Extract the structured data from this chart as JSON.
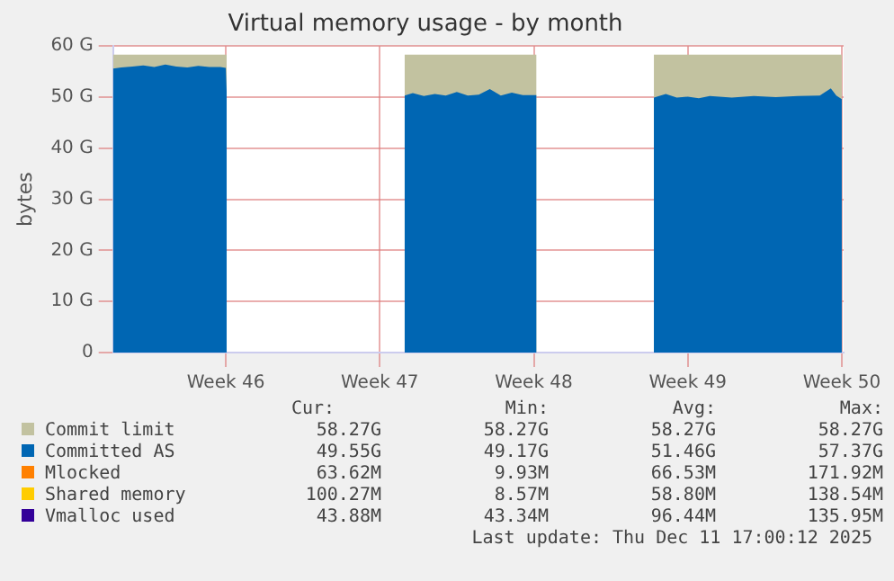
{
  "chart_data": {
    "type": "area",
    "title": "Virtual memory usage - by month",
    "ylabel": "bytes",
    "x": [
      "2025-11-04T21:00",
      "2025-11-05T06:00",
      "2025-11-05T18:00",
      "2025-11-06T06:00",
      "2025-11-06T18:00",
      "2025-11-07T06:00",
      "2025-11-07T18:00",
      "2025-11-08T06:00",
      "2025-11-08T18:00",
      "2025-11-09T06:00",
      "2025-11-09T18:00",
      "2025-11-10T00:00",
      "2025-11-10T01:00",
      "2025-11-14T00:00",
      "2025-11-18T03:00",
      "2025-11-18T12:00",
      "2025-11-19T00:00",
      "2025-11-19T12:00",
      "2025-11-20T00:00",
      "2025-11-20T12:00",
      "2025-11-21T00:00",
      "2025-11-21T12:00",
      "2025-11-22T00:00",
      "2025-11-22T12:00",
      "2025-11-23T00:00",
      "2025-11-23T12:00",
      "2025-11-24T03:00",
      "2025-11-27T00:00",
      "2025-11-29T11:00",
      "2025-11-30T00:00",
      "2025-11-30T12:00",
      "2025-12-01T00:00",
      "2025-12-01T12:00",
      "2025-12-02T00:00",
      "2025-12-03T00:00",
      "2025-12-04T00:00",
      "2025-12-05T00:00",
      "2025-12-06T00:00",
      "2025-12-07T00:00",
      "2025-12-07T12:00",
      "2025-12-07T18:00",
      "2025-12-08T00:00"
    ],
    "series": [
      {
        "name": "Commit limit",
        "color": "#c2c2a0",
        "values": [
          58.3,
          58.3,
          58.3,
          58.3,
          58.3,
          58.3,
          58.3,
          58.3,
          58.3,
          58.3,
          58.3,
          58.3,
          58.3,
          null,
          58.3,
          58.3,
          58.3,
          58.3,
          58.3,
          58.3,
          58.3,
          58.3,
          58.3,
          58.3,
          58.3,
          58.3,
          58.3,
          null,
          58.3,
          58.3,
          58.3,
          58.3,
          58.3,
          58.3,
          58.3,
          58.3,
          58.3,
          58.3,
          58.3,
          58.3,
          58.3,
          58.3
        ]
      },
      {
        "name": "Committed AS",
        "color": "#0066b3",
        "values": [
          55.6,
          55.8,
          56.0,
          56.2,
          55.9,
          56.4,
          56.0,
          55.8,
          56.1,
          55.9,
          55.9,
          55.7,
          50.8,
          null,
          50.3,
          50.8,
          50.2,
          50.6,
          50.3,
          51.0,
          50.3,
          50.5,
          51.6,
          50.3,
          50.9,
          50.4,
          50.4,
          null,
          49.9,
          50.6,
          49.9,
          50.1,
          49.8,
          50.2,
          49.9,
          50.2,
          50.0,
          50.2,
          50.3,
          51.7,
          50.3,
          49.6
        ]
      },
      {
        "name": "Mlocked",
        "color": "#ff8000",
        "values": [
          null,
          null,
          null,
          null,
          null,
          null,
          null,
          null,
          null,
          null,
          null,
          null,
          null,
          null,
          null,
          null,
          null,
          null,
          null,
          null,
          null,
          null,
          null,
          null,
          null,
          null,
          null,
          null,
          null,
          null,
          null,
          null,
          null,
          null,
          null,
          null,
          null,
          null,
          null,
          null,
          null,
          null
        ]
      },
      {
        "name": "Shared memory",
        "color": "#ffcc00",
        "values": [
          null,
          null,
          null,
          null,
          null,
          null,
          null,
          null,
          null,
          null,
          null,
          null,
          null,
          null,
          null,
          null,
          null,
          null,
          null,
          null,
          null,
          null,
          null,
          null,
          null,
          null,
          null,
          null,
          null,
          null,
          null,
          null,
          null,
          null,
          null,
          null,
          null,
          null,
          null,
          null,
          null,
          null
        ]
      },
      {
        "name": "Vmalloc used",
        "color": "#330099",
        "values": [
          null,
          null,
          null,
          null,
          null,
          null,
          null,
          null,
          null,
          null,
          null,
          null,
          null,
          null,
          null,
          null,
          null,
          null,
          null,
          null,
          null,
          null,
          null,
          null,
          null,
          null,
          null,
          null,
          null,
          null,
          null,
          null,
          null,
          null,
          null,
          null,
          null,
          null,
          null,
          null,
          null,
          null
        ]
      }
    ],
    "xlim": [
      "2025-11-04T21:00",
      "2025-12-08T02:00"
    ],
    "xticks": [
      {
        "value": "2025-11-10",
        "label": "Week 46"
      },
      {
        "value": "2025-11-17",
        "label": "Week 47"
      },
      {
        "value": "2025-11-24",
        "label": "Week 48"
      },
      {
        "value": "2025-12-01",
        "label": "Week 49"
      },
      {
        "value": "2025-12-08",
        "label": "Week 50"
      }
    ],
    "ylim": [
      0,
      60
    ],
    "yticks": [
      0,
      {
        "value": 10,
        "label": "10 G"
      },
      {
        "value": 20,
        "label": "20 G"
      },
      {
        "value": 30,
        "label": "30 G"
      },
      {
        "value": 40,
        "label": "40 G"
      },
      {
        "value": 50,
        "label": "50 G"
      },
      {
        "value": 60,
        "label": "60 G"
      }
    ],
    "grid": true,
    "legend": "bottom",
    "marker": "none",
    "annotations": [
      "Cur:",
      "Min:",
      "Avg:",
      "Max:",
      "58.27G",
      "58.27G",
      "58.27G",
      "58.27G",
      "49.55G",
      "49.17G",
      "51.46G",
      "57.37G",
      "63.62M",
      "9.93M",
      "66.53M",
      "171.92M",
      "100.27M",
      "8.57M",
      "58.80M",
      "138.54M",
      "43.88M",
      "43.34M",
      "96.44M",
      "135.95M",
      "Last update: Thu Dec 11 17:00:12 2025"
    ]
  }
}
